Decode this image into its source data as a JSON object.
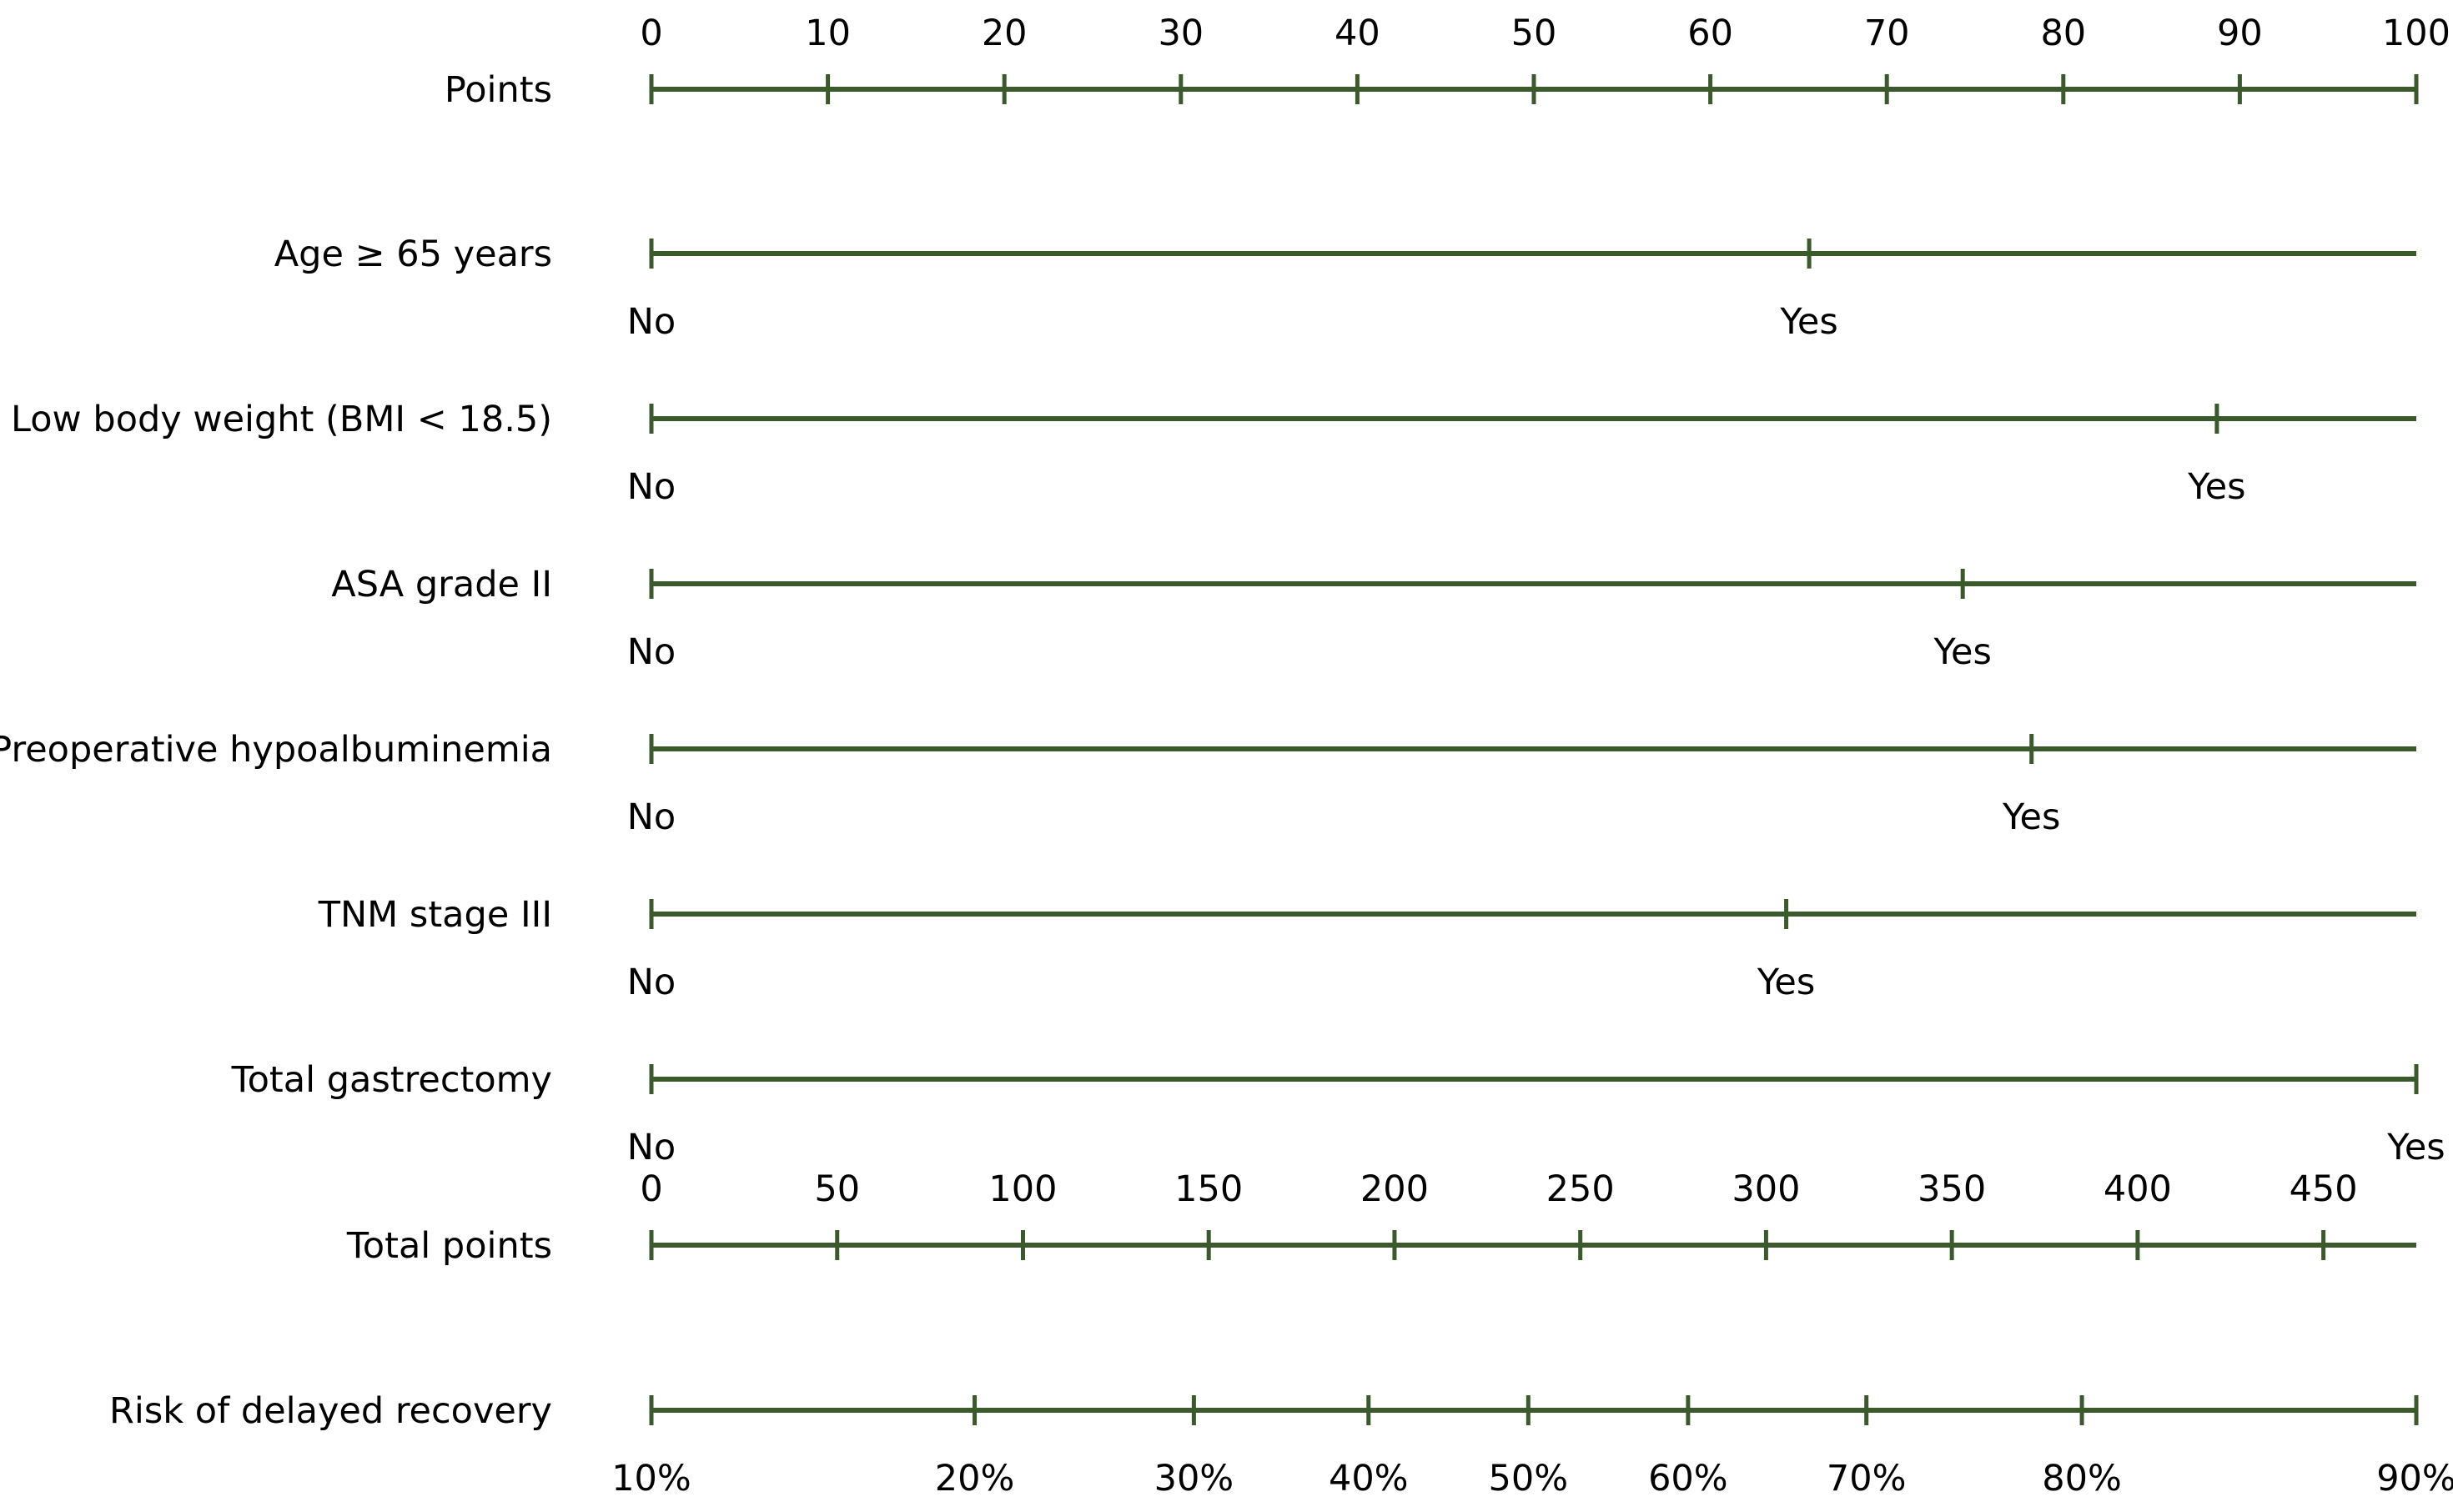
{
  "chart_data": {
    "type": "nomogram",
    "colors": {
      "axis": "#3b5a2c",
      "text": "#000000"
    },
    "points_axis": {
      "label": "Points",
      "min": 0,
      "max": 100,
      "ticks": [
        0,
        10,
        20,
        30,
        40,
        50,
        60,
        70,
        80,
        90,
        100
      ],
      "tick_labels": [
        "0",
        "10",
        "20",
        "30",
        "40",
        "50",
        "60",
        "70",
        "80",
        "90",
        "100"
      ]
    },
    "predictors": [
      {
        "label": "Age ≥ 65 years",
        "levels": [
          {
            "name": "No",
            "points": 0
          },
          {
            "name": "Yes",
            "points": 65.6
          }
        ]
      },
      {
        "label": "Low body weight (BMI < 18.5)",
        "levels": [
          {
            "name": "No",
            "points": 0
          },
          {
            "name": "Yes",
            "points": 88.7
          }
        ]
      },
      {
        "label": "ASA grade II",
        "levels": [
          {
            "name": "No",
            "points": 0
          },
          {
            "name": "Yes",
            "points": 74.3
          }
        ]
      },
      {
        "label": "Preoperative hypoalbuminemia",
        "levels": [
          {
            "name": "No",
            "points": 0
          },
          {
            "name": "Yes",
            "points": 78.2
          }
        ]
      },
      {
        "label": "TNM stage III",
        "levels": [
          {
            "name": "No",
            "points": 0
          },
          {
            "name": "Yes",
            "points": 64.3
          }
        ]
      },
      {
        "label": "Total gastrectomy",
        "levels": [
          {
            "name": "No",
            "points": 0
          },
          {
            "name": "Yes",
            "points": 100
          }
        ]
      }
    ],
    "total_points_axis": {
      "label": "Total points",
      "min": 0,
      "max": 475,
      "ticks": [
        0,
        50,
        100,
        150,
        200,
        250,
        300,
        350,
        400,
        450
      ],
      "tick_labels": [
        "0",
        "50",
        "100",
        "150",
        "200",
        "250",
        "300",
        "350",
        "400",
        "450"
      ]
    },
    "risk_axis": {
      "label": "Risk of delayed recovery",
      "tick_labels": [
        "10%",
        "20%",
        "30%",
        "40%",
        "50%",
        "60%",
        "70%",
        "80%",
        "90%"
      ],
      "probabilities": [
        0.1,
        0.2,
        0.3,
        0.4,
        0.5,
        0.6,
        0.7,
        0.8,
        0.9
      ],
      "total_points": [
        0,
        87,
        146,
        193,
        236,
        279,
        327,
        385,
        475
      ]
    }
  }
}
